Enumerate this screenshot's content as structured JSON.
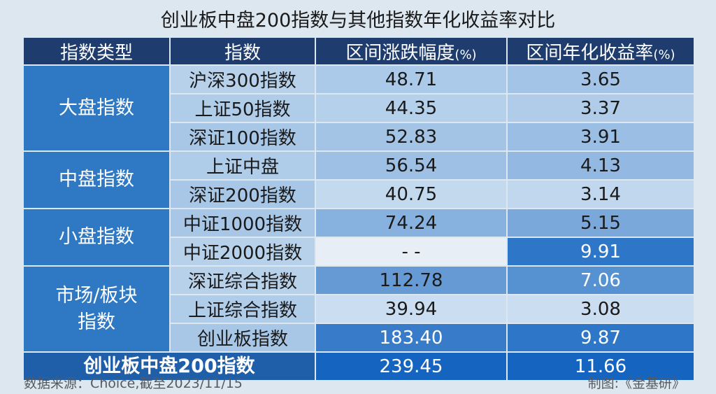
{
  "title": "创业板中盘200指数与其他指数年化收益率对比",
  "chart_data": {
    "type": "table",
    "title": "创业板中盘200指数与其他指数年化收益率对比",
    "columns": [
      {
        "label": "指数类型",
        "unit": ""
      },
      {
        "label": "指数",
        "unit": ""
      },
      {
        "label": "区间涨跌幅度",
        "unit": "(%)"
      },
      {
        "label": "区间年化收益率",
        "unit": "(%)"
      }
    ],
    "groups": [
      {
        "name": "大盘指数",
        "rows": [
          {
            "index": "沪深300指数",
            "change": "48.71",
            "annual": "3.65"
          },
          {
            "index": "上证50指数",
            "change": "44.35",
            "annual": "3.37"
          },
          {
            "index": "深证100指数",
            "change": "52.83",
            "annual": "3.91"
          }
        ]
      },
      {
        "name": "中盘指数",
        "rows": [
          {
            "index": "上证中盘",
            "change": "56.54",
            "annual": "4.13"
          },
          {
            "index": "深证200指数",
            "change": "40.75",
            "annual": "3.14"
          }
        ]
      },
      {
        "name": "小盘指数",
        "rows": [
          {
            "index": "中证1000指数",
            "change": "74.24",
            "annual": "5.15"
          },
          {
            "index": "中证2000指数",
            "change": "- -",
            "annual": "9.91"
          }
        ]
      },
      {
        "name": "市场/板块指数",
        "name_lines": [
          "市场/板块",
          "指数"
        ],
        "rows": [
          {
            "index": "深证综合指数",
            "change": "112.78",
            "annual": "7.06"
          },
          {
            "index": "上证综合指数",
            "change": "39.94",
            "annual": "3.08"
          },
          {
            "index": "创业板指数",
            "change": "183.40",
            "annual": "9.87"
          }
        ]
      }
    ],
    "total": {
      "index": "创业板中盘200指数",
      "change": "239.45",
      "annual": "11.66"
    },
    "colors": {
      "header": "#1f3c6f",
      "category": "#2f78c4",
      "total_label": "#1f5faa",
      "value_scale_low": "#dbe9f5",
      "value_scale_high": "#1565c0"
    }
  },
  "footer": {
    "source": "数据来源：Choice,截至2023/11/15",
    "credit": "制图:《金基研》"
  }
}
